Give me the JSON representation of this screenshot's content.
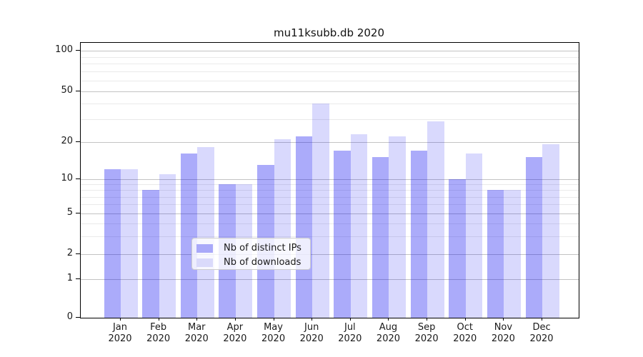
{
  "title": "mu11ksubb.db 2020",
  "legend": {
    "items": [
      {
        "label": "Nb of distinct IPs",
        "swatch_color": "#a9a9f9"
      },
      {
        "label": "Nb of downloads",
        "swatch_color": "#dadafb"
      }
    ]
  },
  "y_axis": {
    "tick_labels": [
      "100",
      "50",
      "20",
      "10",
      "5",
      "2",
      "1",
      "0"
    ],
    "minor_tick_values": [
      3,
      4,
      6,
      7,
      8,
      9,
      30,
      40,
      60,
      70,
      80,
      90
    ]
  },
  "chart_data": {
    "type": "bar",
    "title": "mu11ksubb.db 2020",
    "categories": [
      "Jan 2020",
      "Feb 2020",
      "Mar 2020",
      "Apr 2020",
      "May 2020",
      "Jun 2020",
      "Jul 2020",
      "Aug 2020",
      "Sep 2020",
      "Oct 2020",
      "Nov 2020",
      "Dec 2020"
    ],
    "series": [
      {
        "name": "Nb of distinct IPs",
        "values": [
          12,
          8,
          16,
          9,
          13,
          22,
          17,
          15,
          17,
          10,
          8,
          15
        ],
        "color": "rgba(0,0,240,0.33)"
      },
      {
        "name": "Nb of downloads",
        "values": [
          12,
          11,
          18,
          9,
          21,
          40,
          23,
          22,
          29,
          16,
          8,
          19
        ],
        "color": "rgba(0,0,240,0.15)"
      }
    ],
    "xlabel": "",
    "ylabel": "",
    "yscale": "symlog",
    "ylim": [
      0,
      100
    ],
    "yticks": [
      0,
      1,
      2,
      5,
      10,
      20,
      50,
      100
    ],
    "grid": true,
    "legend_position": "lower center"
  }
}
